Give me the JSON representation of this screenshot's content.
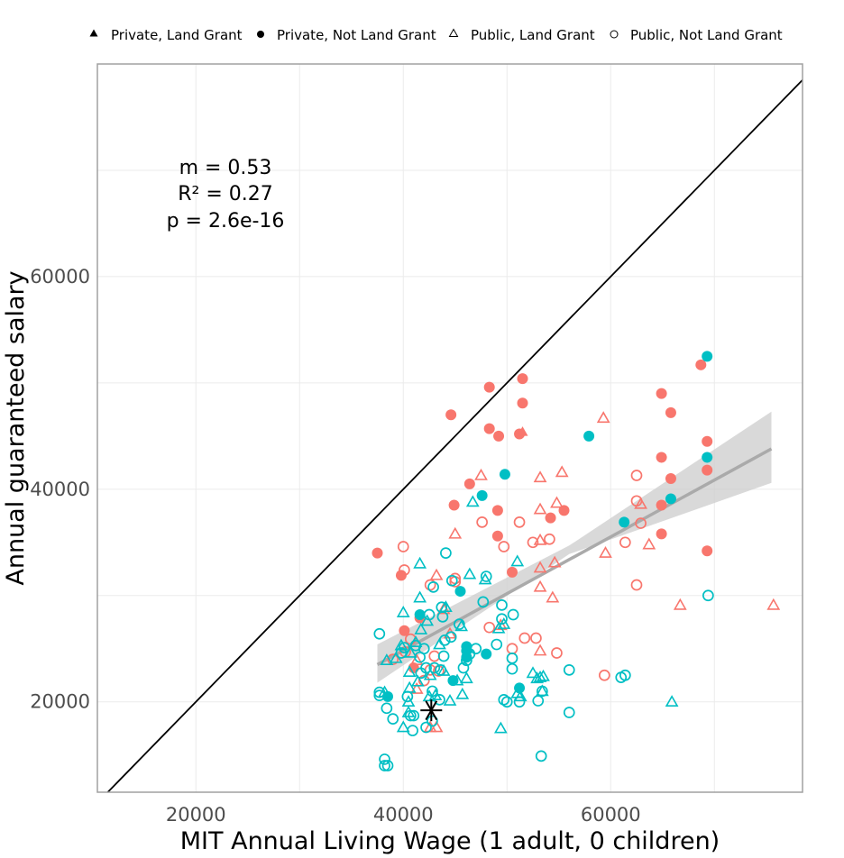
{
  "chart_data": {
    "type": "scatter",
    "xlabel": "MIT Annual Living Wage (1 adult, 0 children)",
    "ylabel": "Annual guaranteed salary",
    "xlim": [
      10500,
      78500
    ],
    "ylim": [
      11500,
      80000
    ],
    "x_ticks": [
      20000,
      40000,
      60000
    ],
    "y_ticks": [
      20000,
      40000,
      60000
    ],
    "grid": true,
    "legend_position": "top",
    "legend": [
      {
        "label": "Private, Land Grant",
        "shape": "triangle-filled"
      },
      {
        "label": "Private, Not Land Grant",
        "shape": "circle-filled"
      },
      {
        "label": "Public, Land Grant",
        "shape": "triangle-open"
      },
      {
        "label": "Public, Not Land Grant",
        "shape": "circle-open"
      }
    ],
    "stats": [
      "m = 0.53",
      "R² = 0.27",
      "p = 2.6e-16"
    ],
    "colors": {
      "salmon": "#F8766D",
      "teal": "#00BFC4",
      "fit_line": "#AAAAAA",
      "ribbon": "#CCCCCC",
      "identity": "#000000",
      "grid": "#EBEBEB",
      "border": "#A0A0A0"
    },
    "identity_line": {
      "x": [
        10500,
        78500
      ],
      "y": [
        10500,
        78500
      ]
    },
    "fit": {
      "x": [
        37500,
        75500
      ],
      "y": [
        23500,
        43800
      ],
      "lower": [
        [
          37500,
          21800
        ],
        [
          56000,
          33900
        ],
        [
          75500,
          40600
        ]
      ],
      "upper": [
        [
          75500,
          47300
        ],
        [
          56000,
          34700
        ],
        [
          37500,
          25400
        ]
      ]
    },
    "reference_point": {
      "x": 42700,
      "y": 19200,
      "marker": "asterisk"
    },
    "series": [
      {
        "shape": "circle-filled",
        "color": "salmon",
        "points": [
          [
            37500,
            34000
          ],
          [
            39800,
            31900
          ],
          [
            40100,
            26700
          ],
          [
            41000,
            23200
          ],
          [
            41600,
            27900
          ],
          [
            44600,
            47000
          ],
          [
            44900,
            38500
          ],
          [
            46400,
            40500
          ],
          [
            48300,
            49600
          ],
          [
            48300,
            45700
          ],
          [
            49200,
            45000
          ],
          [
            49100,
            38000
          ],
          [
            49100,
            35600
          ],
          [
            50500,
            32200
          ],
          [
            51200,
            45200
          ],
          [
            51500,
            50400
          ],
          [
            51500,
            48100
          ],
          [
            54200,
            37300
          ],
          [
            55500,
            38000
          ],
          [
            64900,
            49000
          ],
          [
            65800,
            47200
          ],
          [
            64900,
            43000
          ],
          [
            65800,
            41000
          ],
          [
            64900,
            38500
          ],
          [
            64900,
            35800
          ],
          [
            68700,
            51700
          ],
          [
            69300,
            44500
          ],
          [
            69300,
            41800
          ],
          [
            69300,
            34200
          ]
        ]
      },
      {
        "shape": "circle-filled",
        "color": "teal",
        "points": [
          [
            38500,
            20500
          ],
          [
            41600,
            28200
          ],
          [
            44800,
            22000
          ],
          [
            45500,
            30400
          ],
          [
            46100,
            25200
          ],
          [
            46100,
            24800
          ],
          [
            46100,
            24200
          ],
          [
            47600,
            39400
          ],
          [
            48000,
            24500
          ],
          [
            49800,
            41400
          ],
          [
            51200,
            21300
          ],
          [
            57900,
            45000
          ],
          [
            61300,
            36900
          ],
          [
            65800,
            39100
          ],
          [
            69300,
            52500
          ],
          [
            69300,
            43000
          ]
        ]
      },
      {
        "shape": "triangle-filled",
        "color": "salmon",
        "points": [
          [
            51500,
            45400
          ]
        ]
      },
      {
        "shape": "triangle-open",
        "color": "salmon",
        "points": [
          [
            41300,
            23900
          ],
          [
            43200,
            31900
          ],
          [
            43900,
            28700
          ],
          [
            44500,
            26400
          ],
          [
            45000,
            35800
          ],
          [
            47500,
            41300
          ],
          [
            49400,
            27200
          ],
          [
            53200,
            41100
          ],
          [
            53200,
            38100
          ],
          [
            53200,
            35200
          ],
          [
            53200,
            32600
          ],
          [
            53200,
            30800
          ],
          [
            53200,
            24800
          ],
          [
            54400,
            29800
          ],
          [
            54600,
            33100
          ],
          [
            54800,
            38700
          ],
          [
            55300,
            41600
          ],
          [
            59300,
            46700
          ],
          [
            59500,
            34000
          ],
          [
            62900,
            38600
          ],
          [
            63700,
            34800
          ],
          [
            66700,
            29100
          ],
          [
            75700,
            29100
          ],
          [
            42600,
            17600
          ],
          [
            43200,
            17600
          ],
          [
            41300,
            21200
          ]
        ]
      },
      {
        "shape": "circle-open",
        "color": "salmon",
        "points": [
          [
            39000,
            24000
          ],
          [
            40000,
            34600
          ],
          [
            40100,
            32400
          ],
          [
            40200,
            24700
          ],
          [
            40700,
            25900
          ],
          [
            42600,
            31000
          ],
          [
            42600,
            23000
          ],
          [
            43400,
            22900
          ],
          [
            45000,
            31600
          ],
          [
            45000,
            31300
          ],
          [
            47600,
            36900
          ],
          [
            48300,
            27000
          ],
          [
            49700,
            34600
          ],
          [
            50500,
            25000
          ],
          [
            51200,
            36900
          ],
          [
            51700,
            26000
          ],
          [
            52500,
            35000
          ],
          [
            52800,
            26000
          ],
          [
            54100,
            35300
          ],
          [
            54800,
            24600
          ],
          [
            59400,
            22500
          ],
          [
            62500,
            41300
          ],
          [
            62500,
            38900
          ],
          [
            62500,
            31000
          ],
          [
            62900,
            36800
          ],
          [
            61400,
            35000
          ],
          [
            42000,
            22000
          ],
          [
            43000,
            24300
          ]
        ]
      },
      {
        "shape": "triangle-open",
        "color": "teal",
        "points": [
          [
            38200,
            20900
          ],
          [
            38400,
            23900
          ],
          [
            39300,
            24100
          ],
          [
            39800,
            25300
          ],
          [
            40000,
            28400
          ],
          [
            40000,
            17600
          ],
          [
            40500,
            19000
          ],
          [
            40500,
            20000
          ],
          [
            40600,
            21300
          ],
          [
            40600,
            22800
          ],
          [
            40700,
            24600
          ],
          [
            41200,
            25600
          ],
          [
            41400,
            21900
          ],
          [
            41600,
            33000
          ],
          [
            41600,
            29800
          ],
          [
            41700,
            26800
          ],
          [
            42500,
            20500
          ],
          [
            42600,
            22500
          ],
          [
            43100,
            20600
          ],
          [
            43900,
            22900
          ],
          [
            44100,
            28900
          ],
          [
            44500,
            20100
          ],
          [
            45200,
            22000
          ],
          [
            45700,
            20700
          ],
          [
            46100,
            22200
          ],
          [
            46400,
            32000
          ],
          [
            46700,
            38800
          ],
          [
            47900,
            31500
          ],
          [
            49200,
            26900
          ],
          [
            49400,
            17500
          ],
          [
            49700,
            27300
          ],
          [
            51000,
            20800
          ],
          [
            51000,
            33200
          ],
          [
            51300,
            20500
          ],
          [
            52500,
            22700
          ],
          [
            52900,
            22200
          ],
          [
            53200,
            22300
          ],
          [
            53500,
            22400
          ],
          [
            53400,
            21000
          ],
          [
            65900,
            20000
          ],
          [
            42300,
            27600
          ],
          [
            43500,
            25400
          ],
          [
            45600,
            27100
          ]
        ]
      },
      {
        "shape": "circle-open",
        "color": "teal",
        "points": [
          [
            37700,
            26400
          ],
          [
            37700,
            20900
          ],
          [
            37700,
            20600
          ],
          [
            38200,
            14600
          ],
          [
            38200,
            14000
          ],
          [
            38500,
            14000
          ],
          [
            39000,
            18400
          ],
          [
            39800,
            24600
          ],
          [
            40100,
            25100
          ],
          [
            40400,
            20500
          ],
          [
            40700,
            18700
          ],
          [
            40900,
            17300
          ],
          [
            41000,
            18700
          ],
          [
            41200,
            25300
          ],
          [
            41600,
            24200
          ],
          [
            41700,
            22700
          ],
          [
            42000,
            25000
          ],
          [
            42200,
            23200
          ],
          [
            42200,
            17600
          ],
          [
            42500,
            28200
          ],
          [
            42800,
            18200
          ],
          [
            42800,
            21000
          ],
          [
            43000,
            23200
          ],
          [
            43500,
            20200
          ],
          [
            43700,
            28900
          ],
          [
            43800,
            28000
          ],
          [
            43900,
            24300
          ],
          [
            44000,
            25800
          ],
          [
            44100,
            34000
          ],
          [
            44700,
            31400
          ],
          [
            45400,
            27300
          ],
          [
            45800,
            23200
          ],
          [
            46100,
            23900
          ],
          [
            46400,
            24500
          ],
          [
            47000,
            25000
          ],
          [
            47700,
            29400
          ],
          [
            48000,
            31800
          ],
          [
            49000,
            25400
          ],
          [
            49500,
            27800
          ],
          [
            49500,
            29100
          ],
          [
            49700,
            20200
          ],
          [
            50000,
            20000
          ],
          [
            50500,
            23100
          ],
          [
            50500,
            24100
          ],
          [
            50600,
            28200
          ],
          [
            51200,
            20000
          ],
          [
            53000,
            20100
          ],
          [
            53300,
            14900
          ],
          [
            53400,
            21000
          ],
          [
            56000,
            23000
          ],
          [
            56000,
            19000
          ],
          [
            61000,
            22300
          ],
          [
            61400,
            22500
          ],
          [
            69400,
            30000
          ],
          [
            38400,
            19400
          ],
          [
            42900,
            30800
          ],
          [
            43600,
            23000
          ],
          [
            44600,
            26100
          ]
        ]
      }
    ]
  }
}
